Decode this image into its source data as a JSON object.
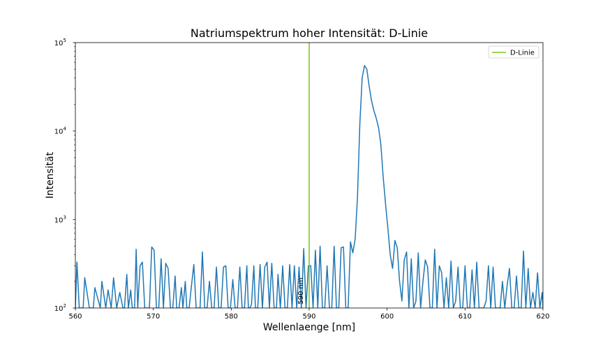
{
  "chart_data": {
    "type": "line",
    "title": "Natriumspektrum hoher Intensität: D-Linie",
    "xlabel": "Wellenlaenge [nm]",
    "ylabel": "Intensität",
    "xlim": [
      560,
      620
    ],
    "ylim": [
      100,
      100000
    ],
    "yscale": "log",
    "x_ticks": [
      560,
      570,
      580,
      590,
      600,
      610,
      620
    ],
    "y_ticks": [
      {
        "value": 100,
        "base": "10",
        "exp": "2"
      },
      {
        "value": 1000,
        "base": "10",
        "exp": "3"
      },
      {
        "value": 10000,
        "base": "10",
        "exp": "4"
      },
      {
        "value": 100000,
        "base": "10",
        "exp": "5"
      }
    ],
    "grid": false,
    "legend_position": "top-right",
    "series": [
      {
        "color": "#1f77b4",
        "x": [
          560.0,
          560.2,
          560.5,
          561.0,
          561.2,
          561.8,
          562.3,
          562.5,
          563.2,
          563.4,
          563.9,
          564.2,
          564.6,
          564.9,
          565.3,
          565.7,
          566.1,
          566.3,
          566.6,
          566.8,
          567.1,
          567.3,
          567.6,
          567.8,
          568.0,
          568.3,
          568.6,
          568.9,
          569.2,
          569.5,
          569.8,
          570.1,
          570.4,
          570.7,
          571.0,
          571.3,
          571.6,
          571.9,
          572.2,
          572.5,
          572.8,
          573.0,
          573.3,
          573.6,
          573.8,
          574.1,
          574.3,
          574.6,
          574.9,
          575.2,
          575.5,
          575.8,
          576.0,
          576.3,
          576.6,
          576.9,
          577.2,
          577.5,
          577.8,
          578.1,
          578.4,
          578.7,
          579.0,
          579.3,
          579.6,
          579.9,
          580.2,
          580.5,
          580.8,
          581.1,
          581.4,
          581.7,
          582.0,
          582.2,
          582.4,
          582.6,
          582.9,
          583.1,
          583.4,
          583.7,
          584.0,
          584.3,
          584.6,
          584.9,
          585.2,
          585.5,
          585.8,
          586.0,
          586.3,
          586.6,
          586.9,
          587.2,
          587.5,
          587.8,
          588.1,
          588.4,
          588.7,
          589.0,
          589.3,
          589.6,
          589.9,
          590.2,
          590.5,
          590.8,
          591.1,
          591.4,
          591.7,
          592.0,
          592.3,
          592.6,
          592.9,
          593.2,
          593.5,
          593.8,
          594.1,
          594.4,
          594.7,
          595.0,
          595.3,
          595.6,
          595.9,
          596.2,
          596.5,
          596.8,
          597.1,
          597.4,
          597.7,
          598.0,
          598.3,
          598.6,
          598.9,
          599.2,
          599.5,
          599.8,
          600.1,
          600.4,
          600.7,
          601.0,
          601.3,
          601.6,
          601.9,
          602.2,
          602.5,
          602.8,
          603.1,
          603.4,
          603.7,
          604.0,
          604.3,
          604.6,
          604.9,
          605.2,
          605.5,
          605.8,
          606.1,
          606.4,
          606.7,
          607.0,
          607.3,
          607.6,
          607.9,
          608.2,
          608.5,
          608.8,
          609.1,
          609.4,
          609.7,
          610.0,
          610.3,
          610.6,
          610.9,
          611.2,
          611.5,
          611.8,
          612.1,
          612.4,
          612.7,
          613.0,
          613.3,
          613.6,
          613.9,
          614.2,
          614.5,
          614.8,
          615.1,
          615.4,
          615.7,
          616.0,
          616.3,
          616.6,
          616.9,
          617.2,
          617.5,
          617.8,
          618.1,
          618.4,
          618.7,
          619.0,
          619.3,
          619.6,
          619.9,
          620.0
        ],
        "values": [
          100,
          330,
          100,
          100,
          220,
          100,
          100,
          170,
          100,
          200,
          100,
          160,
          100,
          220,
          100,
          150,
          100,
          100,
          240,
          100,
          160,
          100,
          100,
          460,
          100,
          300,
          330,
          100,
          100,
          100,
          490,
          450,
          100,
          100,
          360,
          100,
          320,
          280,
          100,
          100,
          230,
          100,
          100,
          170,
          100,
          200,
          100,
          100,
          180,
          310,
          100,
          100,
          100,
          430,
          100,
          100,
          200,
          100,
          100,
          290,
          100,
          100,
          290,
          300,
          100,
          100,
          210,
          100,
          100,
          290,
          100,
          100,
          300,
          100,
          100,
          110,
          300,
          100,
          100,
          310,
          100,
          290,
          330,
          100,
          320,
          100,
          100,
          240,
          100,
          300,
          100,
          100,
          310,
          100,
          300,
          100,
          290,
          100,
          470,
          100,
          300,
          300,
          100,
          450,
          100,
          500,
          100,
          100,
          300,
          100,
          100,
          500,
          100,
          100,
          480,
          490,
          100,
          100,
          560,
          420,
          600,
          1800,
          12000,
          40000,
          55000,
          50000,
          32000,
          22000,
          17000,
          14000,
          11000,
          7000,
          3000,
          1500,
          800,
          400,
          280,
          580,
          480,
          200,
          120,
          350,
          430,
          100,
          360,
          100,
          120,
          420,
          100,
          200,
          350,
          290,
          100,
          100,
          460,
          100,
          300,
          250,
          100,
          220,
          100,
          340,
          100,
          120,
          290,
          100,
          100,
          300,
          100,
          100,
          270,
          100,
          330,
          100,
          100,
          100,
          120,
          300,
          100,
          290,
          100,
          100,
          100,
          200,
          100,
          180,
          280,
          100,
          100,
          230,
          100,
          100,
          440,
          100,
          280,
          100,
          150,
          100,
          250,
          100,
          150,
          100
        ]
      },
      {
        "name": "D-Linie",
        "color": "#7ec820",
        "type": "vline",
        "x": 590
      }
    ],
    "annotations": [
      {
        "text": "590 nm",
        "x": 589.2,
        "y": 110,
        "rotation": 90
      }
    ]
  }
}
